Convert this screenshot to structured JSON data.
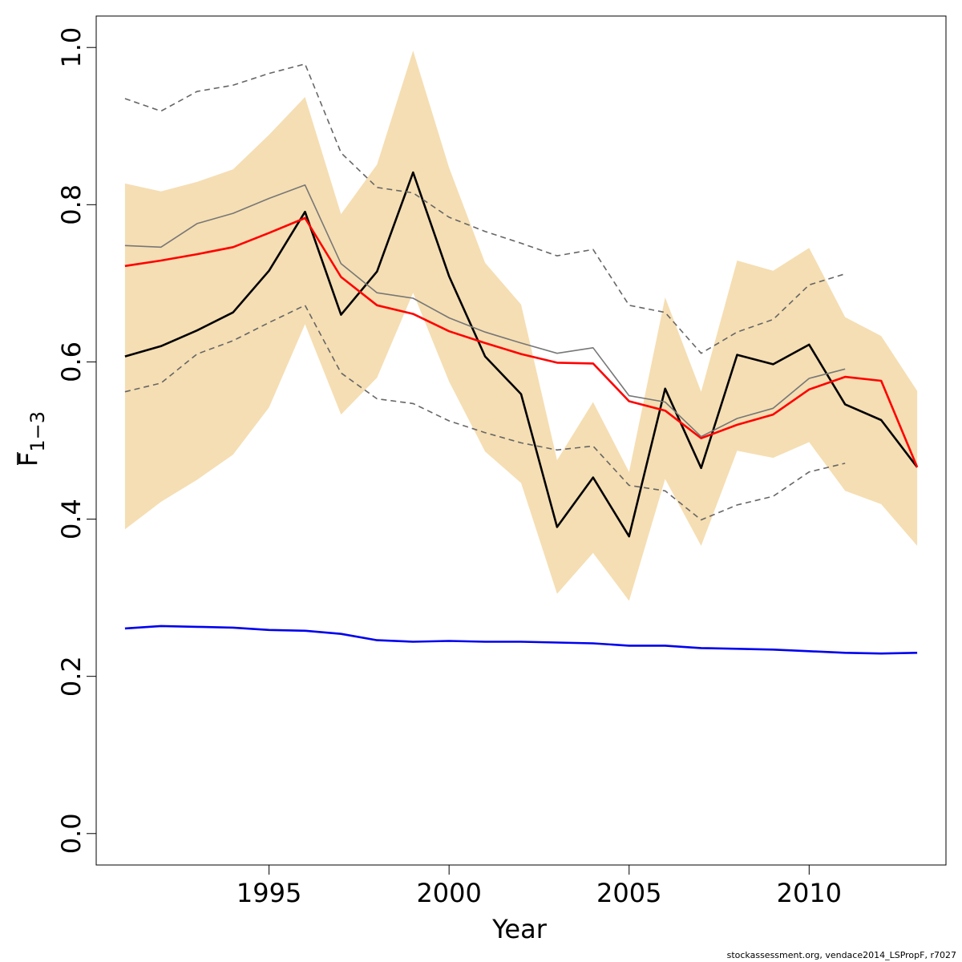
{
  "chart_data": {
    "type": "line",
    "xlabel": "Year",
    "ylabel": {
      "main": "F",
      "subscript": "1−3"
    },
    "xlim": [
      1990.2,
      2013.8
    ],
    "ylim": [
      -0.04,
      1.04
    ],
    "xticks": [
      1995,
      2000,
      2005,
      2010
    ],
    "yticks": [
      0.0,
      0.2,
      0.4,
      0.6,
      0.8,
      1.0
    ],
    "ytick_labels": [
      "0.0",
      "0.2",
      "0.4",
      "0.6",
      "0.8",
      "1.0"
    ],
    "grid": false,
    "legend": "none",
    "footer": "stockassessment.org, vendace2014_LSPropF, r7027",
    "confidence_band": {
      "color": "#f5deb3",
      "x": [
        1991,
        1992,
        1993,
        1994,
        1995,
        1996,
        1997,
        1998,
        1999,
        2000,
        2001,
        2002,
        2003,
        2004,
        2005,
        2006,
        2007,
        2008,
        2009,
        2010,
        2011,
        2012,
        2013
      ],
      "lower": [
        0.387,
        0.422,
        0.45,
        0.482,
        0.542,
        0.648,
        0.533,
        0.58,
        0.688,
        0.575,
        0.486,
        0.446,
        0.305,
        0.357,
        0.296,
        0.451,
        0.366,
        0.487,
        0.478,
        0.498,
        0.436,
        0.419,
        0.366
      ],
      "upper": [
        0.827,
        0.817,
        0.829,
        0.845,
        0.889,
        0.937,
        0.788,
        0.851,
        0.996,
        0.847,
        0.726,
        0.673,
        0.475,
        0.549,
        0.46,
        0.682,
        0.562,
        0.729,
        0.716,
        0.745,
        0.657,
        0.633,
        0.563
      ]
    },
    "series": [
      {
        "color": "#000000",
        "dash": "solid",
        "x": [
          1991,
          1992,
          1993,
          1994,
          1995,
          1996,
          1997,
          1998,
          1999,
          2000,
          2001,
          2002,
          2003,
          2004,
          2005,
          2006,
          2007,
          2008,
          2009,
          2010,
          2011,
          2012,
          2013
        ],
        "y": [
          0.607,
          0.62,
          0.64,
          0.663,
          0.716,
          0.791,
          0.66,
          0.715,
          0.841,
          0.709,
          0.607,
          0.559,
          0.39,
          0.453,
          0.378,
          0.566,
          0.465,
          0.609,
          0.597,
          0.622,
          0.546,
          0.526,
          0.466
        ]
      },
      {
        "color": "#ff0000",
        "dash": "solid",
        "x": [
          1991,
          1992,
          1993,
          1994,
          1995,
          1996,
          1997,
          1998,
          1999,
          2000,
          2001,
          2002,
          2003,
          2004,
          2005,
          2006,
          2007,
          2008,
          2009,
          2010,
          2011,
          2012,
          2013
        ],
        "y": [
          0.722,
          0.729,
          0.737,
          0.746,
          0.764,
          0.783,
          0.708,
          0.672,
          0.661,
          0.639,
          0.624,
          0.61,
          0.599,
          0.598,
          0.55,
          0.538,
          0.503,
          0.52,
          0.533,
          0.565,
          0.581,
          0.576,
          0.466
        ]
      },
      {
        "color": "#777777",
        "dash": "solid",
        "x": [
          1991,
          1992,
          1993,
          1994,
          1995,
          1996,
          1997,
          1998,
          1999,
          2000,
          2001,
          2002,
          2003,
          2004,
          2005,
          2006,
          2007,
          2008,
          2009,
          2010,
          2011
        ],
        "y": [
          0.748,
          0.746,
          0.776,
          0.789,
          0.808,
          0.825,
          0.725,
          0.688,
          0.681,
          0.656,
          0.638,
          0.624,
          0.611,
          0.618,
          0.557,
          0.549,
          0.505,
          0.528,
          0.541,
          0.579,
          0.591
        ]
      },
      {
        "color": "#666666",
        "dash": "dashed",
        "x": [
          1991,
          1992,
          1993,
          1994,
          1995,
          1996,
          1997,
          1998,
          1999,
          2000,
          2001,
          2002,
          2003,
          2004,
          2005,
          2006,
          2007,
          2008,
          2009,
          2010,
          2011
        ],
        "y": [
          0.935,
          0.919,
          0.944,
          0.952,
          0.967,
          0.979,
          0.866,
          0.822,
          0.815,
          0.784,
          0.766,
          0.751,
          0.735,
          0.743,
          0.672,
          0.663,
          0.611,
          0.638,
          0.654,
          0.698,
          0.712
        ]
      },
      {
        "color": "#666666",
        "dash": "dashed",
        "x": [
          1991,
          1992,
          1993,
          1994,
          1995,
          1996,
          1997,
          1998,
          1999,
          2000,
          2001,
          2002,
          2003,
          2004,
          2005,
          2006,
          2007,
          2008,
          2009,
          2010,
          2011
        ],
        "y": [
          0.562,
          0.573,
          0.61,
          0.627,
          0.65,
          0.672,
          0.586,
          0.553,
          0.547,
          0.525,
          0.51,
          0.497,
          0.488,
          0.493,
          0.443,
          0.436,
          0.399,
          0.418,
          0.429,
          0.46,
          0.471
        ]
      },
      {
        "color": "#0000ee",
        "dash": "solid",
        "x": [
          1991,
          1992,
          1993,
          1994,
          1995,
          1996,
          1997,
          1998,
          1999,
          2000,
          2001,
          2002,
          2003,
          2004,
          2005,
          2006,
          2007,
          2008,
          2009,
          2010,
          2011,
          2012,
          2013
        ],
        "y": [
          0.261,
          0.264,
          0.263,
          0.262,
          0.259,
          0.258,
          0.254,
          0.246,
          0.244,
          0.245,
          0.244,
          0.244,
          0.243,
          0.242,
          0.239,
          0.239,
          0.236,
          0.235,
          0.234,
          0.232,
          0.23,
          0.229,
          0.23
        ]
      }
    ]
  }
}
